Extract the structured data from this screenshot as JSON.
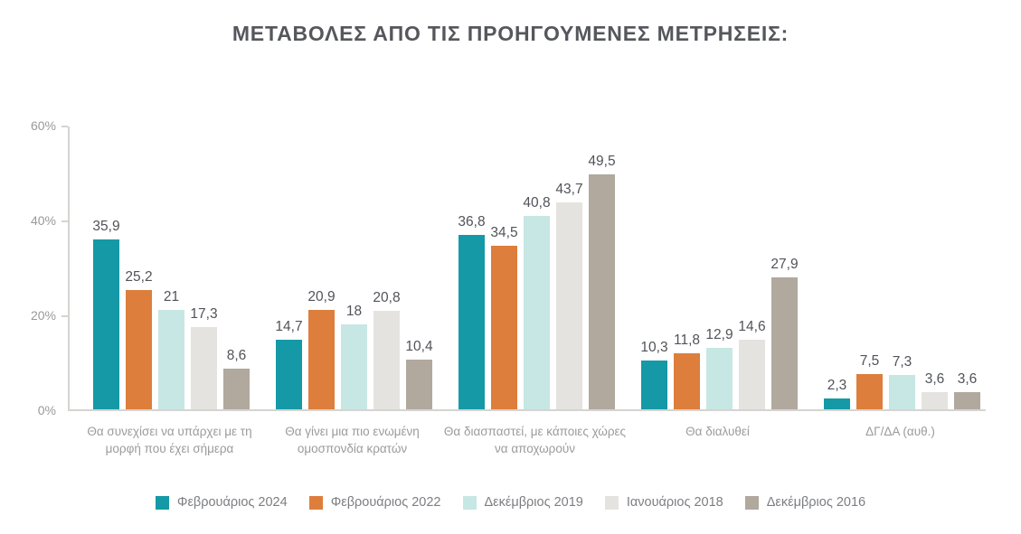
{
  "title": "ΜΕΤΑΒΟΛΕΣ ΑΠΟ ΤΙΣ ΠΡΟΗΓΟΥΜΕΝΕΣ ΜΕΤΡΗΣΕΙΣ:",
  "colors": {
    "accent_teal": "#1599A6",
    "accent_orange": "#DD7E3D",
    "accent_lightcyan": "#C7E7E4",
    "accent_lightgray": "#E5E3E0",
    "accent_taupe": "#B1A89E",
    "axis_line": "#D6D4D1"
  },
  "chart_data": {
    "type": "bar",
    "title": "ΜΕΤΑΒΟΛΕΣ ΑΠΟ ΤΙΣ ΠΡΟΗΓΟΥΜΕΝΕΣ ΜΕΤΡΗΣΕΙΣ:",
    "categories": [
      "Θα συνεχίσει να υπάρχει με τη μορφή που έχει σήμερα",
      "Θα γίνει μια πιο ενωμένη ομοσπονδία κρατών",
      "Θα διασπαστεί, με κάποιες χώρες να αποχωρούν",
      "Θα διαλυθεί",
      "ΔΓ/ΔΑ (αυθ.)"
    ],
    "series": [
      {
        "name": "Φεβρουάριος 2024",
        "color": "#1599A6",
        "values": [
          35.9,
          14.7,
          36.8,
          10.3,
          2.3
        ],
        "labels": [
          "35,9",
          "14,7",
          "36,8",
          "10,3",
          "2,3"
        ]
      },
      {
        "name": "Φεβρουάριος 2022",
        "color": "#DD7E3D",
        "values": [
          25.2,
          20.9,
          34.5,
          11.8,
          7.5
        ],
        "labels": [
          "25,2",
          "20,9",
          "34,5",
          "11,8",
          "7,5"
        ]
      },
      {
        "name": "Δεκέμβριος 2019",
        "color": "#C7E7E4",
        "values": [
          21,
          18,
          40.8,
          12.9,
          7.3
        ],
        "labels": [
          "21",
          "18",
          "40,8",
          "12,9",
          "7,3"
        ]
      },
      {
        "name": "Ιανουάριος 2018",
        "color": "#E5E3E0",
        "values": [
          17.3,
          20.8,
          43.7,
          14.6,
          3.6
        ],
        "labels": [
          "17,3",
          "20,8",
          "43,7",
          "14,6",
          "3,6"
        ]
      },
      {
        "name": "Δεκέμβριος 2016",
        "color": "#B1A89E",
        "values": [
          8.6,
          10.4,
          49.5,
          27.9,
          3.6
        ],
        "labels": [
          "8,6",
          "10,4",
          "49,5",
          "27,9",
          "3,6"
        ]
      }
    ],
    "xlabel": "",
    "ylabel": "",
    "ylim": [
      0,
      60
    ],
    "yticks": [
      {
        "value": 0,
        "label": "0%"
      },
      {
        "value": 20,
        "label": "20%"
      },
      {
        "value": 40,
        "label": "40%"
      },
      {
        "value": 60,
        "label": "60%"
      }
    ],
    "grid": false,
    "legend_position": "bottom"
  }
}
